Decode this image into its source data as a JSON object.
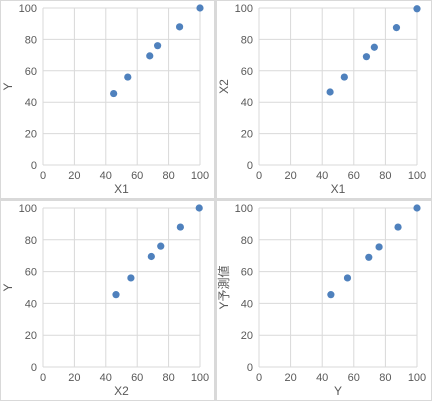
{
  "chart_data": [
    {
      "type": "scatter",
      "title": "",
      "xlabel": "X1",
      "ylabel": "Y",
      "xlim": [
        0,
        100
      ],
      "ylim": [
        0,
        100
      ],
      "xticks": [
        "0",
        "20",
        "40",
        "60",
        "80",
        "100"
      ],
      "yticks": [
        "0",
        "20",
        "40",
        "60",
        "80",
        "100"
      ],
      "grid": true,
      "color": "#4f81bd",
      "x": [
        45,
        54,
        68,
        73,
        87,
        100
      ],
      "y": [
        45.5,
        56,
        69.5,
        76,
        88,
        100
      ]
    },
    {
      "type": "scatter",
      "title": "",
      "xlabel": "X1",
      "ylabel": "X2",
      "xlim": [
        0,
        100
      ],
      "ylim": [
        0,
        100
      ],
      "xticks": [
        "0",
        "20",
        "40",
        "60",
        "80",
        "100"
      ],
      "yticks": [
        "0",
        "20",
        "40",
        "60",
        "80",
        "100"
      ],
      "grid": true,
      "color": "#4f81bd",
      "x": [
        45,
        54,
        68,
        73,
        87,
        100
      ],
      "y": [
        46.5,
        56,
        69,
        75,
        87.5,
        99.5
      ]
    },
    {
      "type": "scatter",
      "title": "",
      "xlabel": "X2",
      "ylabel": "Y",
      "xlim": [
        0,
        100
      ],
      "ylim": [
        0,
        100
      ],
      "xticks": [
        "0",
        "20",
        "40",
        "60",
        "80",
        "100"
      ],
      "yticks": [
        "0",
        "20",
        "40",
        "60",
        "80",
        "100"
      ],
      "grid": true,
      "color": "#4f81bd",
      "x": [
        46.5,
        56,
        69,
        75,
        87.5,
        99.5
      ],
      "y": [
        45.5,
        56,
        69.5,
        76,
        88,
        100
      ]
    },
    {
      "type": "scatter",
      "title": "",
      "xlabel": "Y",
      "ylabel": "Y予測値",
      "xlim": [
        0,
        100
      ],
      "ylim": [
        0,
        100
      ],
      "xticks": [
        "0",
        "20",
        "40",
        "60",
        "80",
        "100"
      ],
      "yticks": [
        "0",
        "20",
        "40",
        "60",
        "80",
        "100"
      ],
      "grid": true,
      "color": "#4f81bd",
      "x": [
        45.5,
        56,
        69.5,
        76,
        88,
        100
      ],
      "y": [
        45.5,
        56,
        69,
        75.5,
        88,
        100
      ]
    }
  ]
}
